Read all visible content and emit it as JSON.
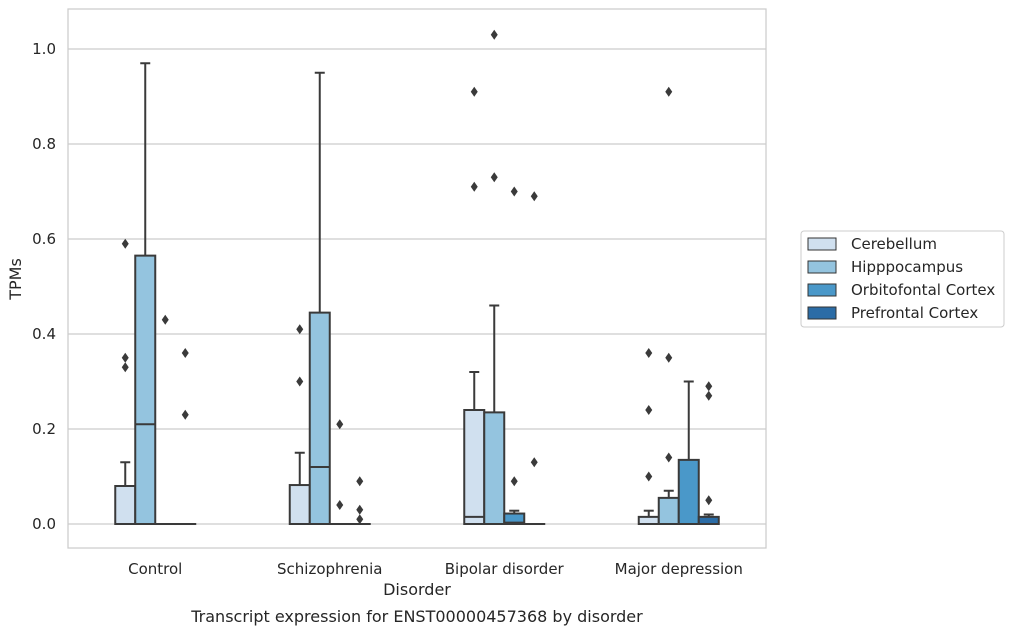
{
  "chart_data": {
    "type": "boxplot",
    "caption": "Transcript expression for ENST00000457368 by disorder",
    "xlabel": "Disorder",
    "ylabel": "TPMs",
    "ylim": [
      -0.05,
      1.08
    ],
    "yticks": [
      "0.0",
      "0.2",
      "0.4",
      "0.6",
      "0.8",
      "1.0"
    ],
    "grid": true,
    "legend_position": "right",
    "categories": [
      "Control",
      "Schizophrenia",
      "Bipolar disorder",
      "Major depression"
    ],
    "series": [
      {
        "name": "Cerebellum",
        "color": "#d0e0ef",
        "boxes": [
          {
            "q1": 0,
            "median": 0,
            "q3": 0.08,
            "whisker_low": 0,
            "whisker_high": 0.13,
            "outliers": [
              0.59,
              0.35,
              0.33
            ]
          },
          {
            "q1": 0,
            "median": 0,
            "q3": 0.082,
            "whisker_low": 0,
            "whisker_high": 0.15,
            "outliers": [
              0.41,
              0.3
            ]
          },
          {
            "q1": 0,
            "median": 0.015,
            "q3": 0.24,
            "whisker_low": 0,
            "whisker_high": 0.32,
            "outliers": [
              0.91,
              0.71
            ]
          },
          {
            "q1": 0,
            "median": 0,
            "q3": 0.015,
            "whisker_low": 0,
            "whisker_high": 0.028,
            "outliers": [
              0.36,
              0.24,
              0.1
            ]
          }
        ]
      },
      {
        "name": "Hipppocampus",
        "color": "#94c4df",
        "boxes": [
          {
            "q1": 0,
            "median": 0.21,
            "q3": 0.565,
            "whisker_low": 0,
            "whisker_high": 0.97,
            "outliers": []
          },
          {
            "q1": 0,
            "median": 0.12,
            "q3": 0.445,
            "whisker_low": 0,
            "whisker_high": 0.95,
            "outliers": []
          },
          {
            "q1": 0,
            "median": 0,
            "q3": 0.235,
            "whisker_low": 0,
            "whisker_high": 0.46,
            "outliers": [
              1.03,
              0.73
            ]
          },
          {
            "q1": 0,
            "median": 0,
            "q3": 0.055,
            "whisker_low": 0,
            "whisker_high": 0.07,
            "outliers": [
              0.91,
              0.35,
              0.14
            ]
          }
        ]
      },
      {
        "name": "Orbitofontal Cortex",
        "color": "#4a98c9",
        "boxes": [
          {
            "q1": 0,
            "median": 0,
            "q3": 0,
            "whisker_low": 0,
            "whisker_high": 0,
            "outliers": [
              0.43
            ]
          },
          {
            "q1": 0,
            "median": 0,
            "q3": 0,
            "whisker_low": 0,
            "whisker_high": 0,
            "outliers": [
              0.21,
              0.04
            ]
          },
          {
            "q1": 0,
            "median": 0.003,
            "q3": 0.022,
            "whisker_low": 0,
            "whisker_high": 0.028,
            "outliers": [
              0.7,
              0.09
            ]
          },
          {
            "q1": 0,
            "median": 0,
            "q3": 0.135,
            "whisker_low": 0,
            "whisker_high": 0.3,
            "outliers": []
          }
        ]
      },
      {
        "name": "Prefrontal Cortex",
        "color": "#2b6ca6",
        "boxes": [
          {
            "q1": 0,
            "median": 0,
            "q3": 0,
            "whisker_low": 0,
            "whisker_high": 0,
            "outliers": [
              0.36,
              0.23
            ]
          },
          {
            "q1": 0,
            "median": 0,
            "q3": 0,
            "whisker_low": 0,
            "whisker_high": 0,
            "outliers": [
              0.09,
              0.03,
              0.01
            ]
          },
          {
            "q1": 0,
            "median": 0,
            "q3": 0,
            "whisker_low": 0,
            "whisker_high": 0,
            "outliers": [
              0.69,
              0.13
            ]
          },
          {
            "q1": 0,
            "median": 0,
            "q3": 0.015,
            "whisker_low": 0,
            "whisker_high": 0.02,
            "outliers": [
              0.29,
              0.27,
              0.05
            ]
          }
        ]
      }
    ]
  }
}
